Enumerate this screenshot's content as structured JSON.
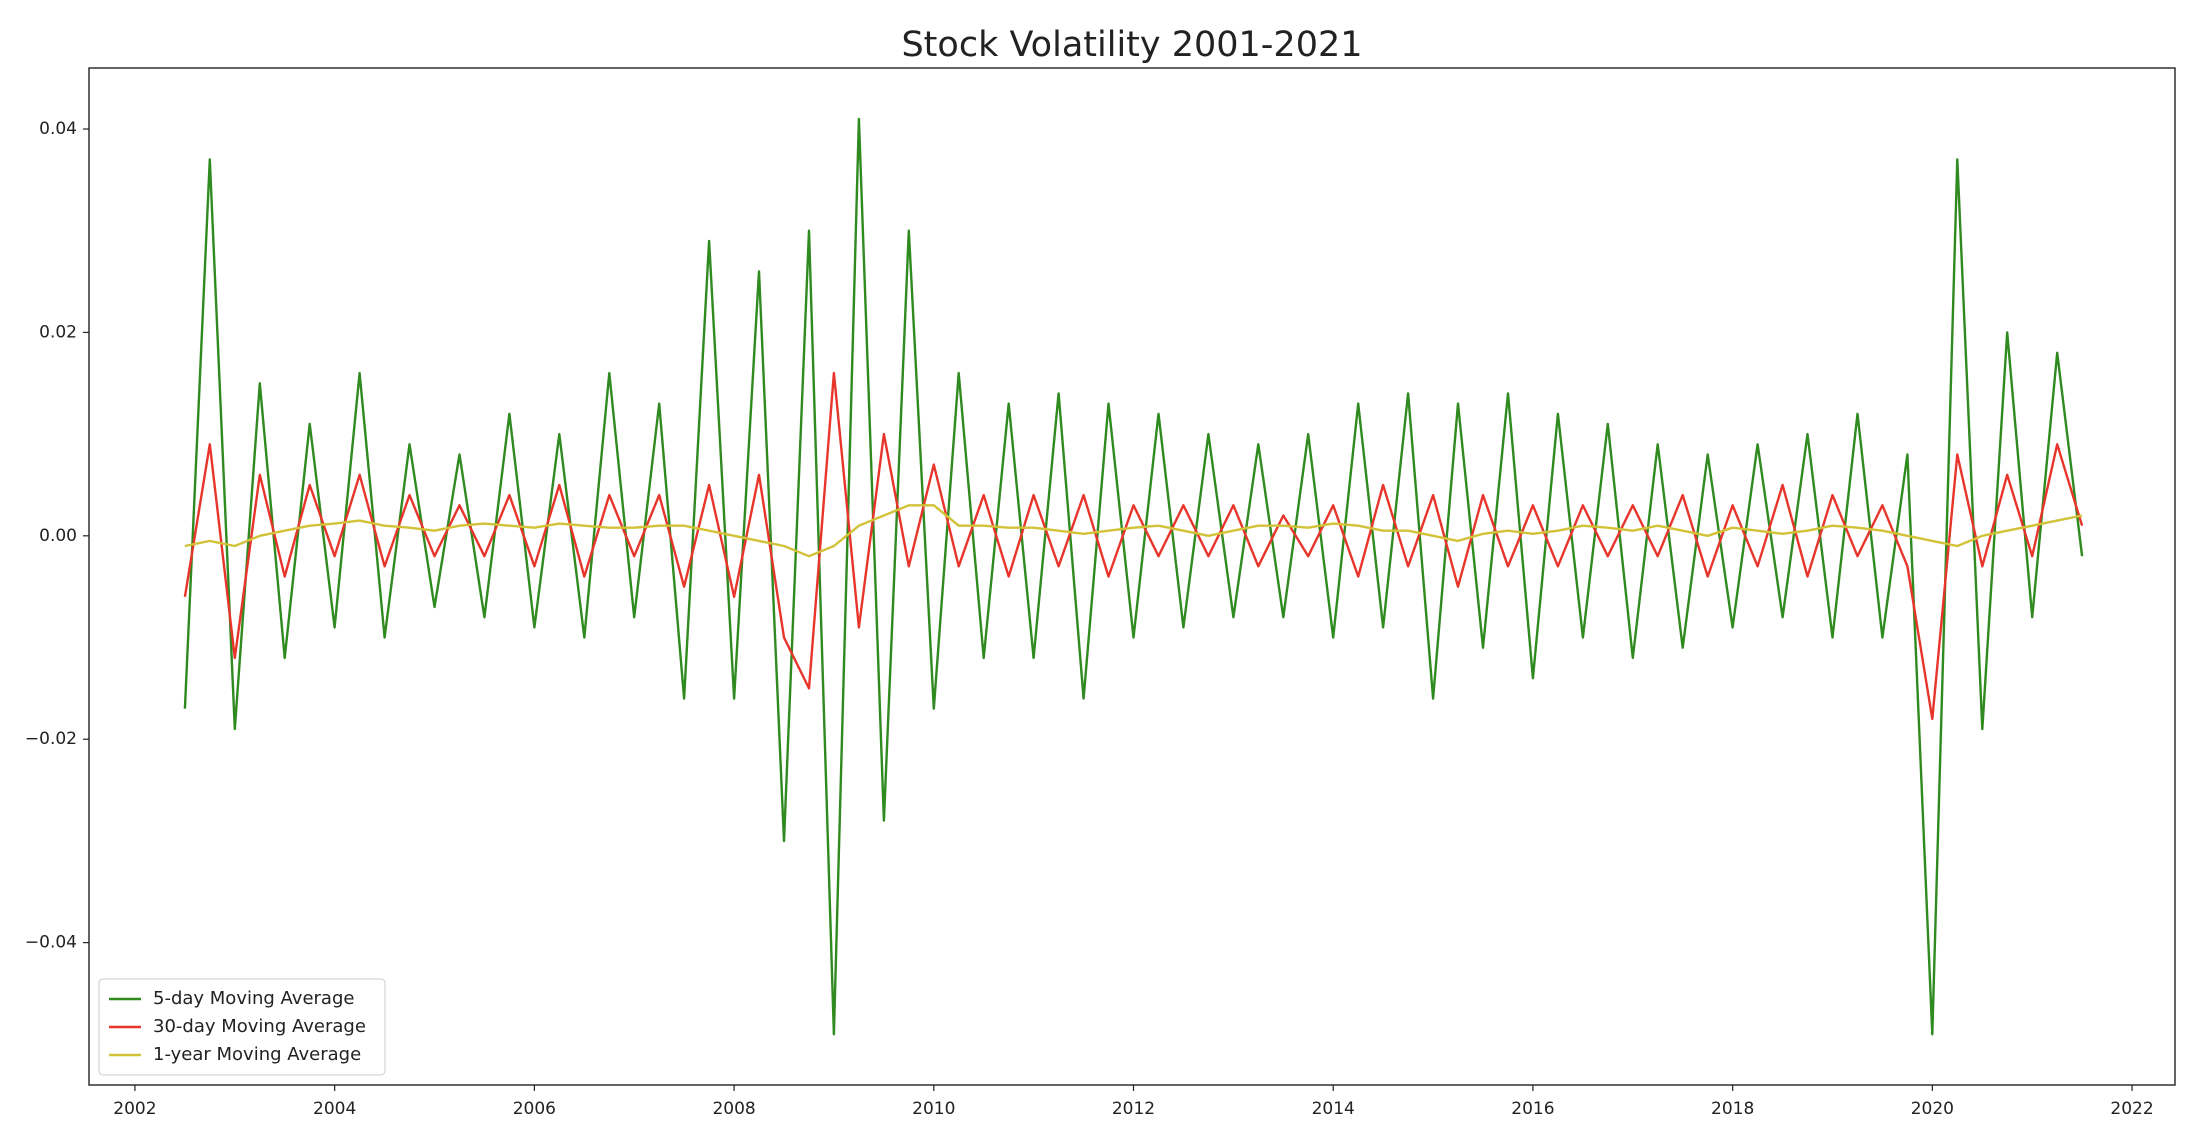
{
  "chart_data": {
    "type": "line",
    "title": "Stock Volatility 2001-2021",
    "x": [
      2002.5,
      2002.75,
      2003,
      2003.25,
      2003.5,
      2003.75,
      2004,
      2004.25,
      2004.5,
      2004.75,
      2005,
      2005.25,
      2005.5,
      2005.75,
      2006,
      2006.25,
      2006.5,
      2006.75,
      2007,
      2007.25,
      2007.5,
      2007.75,
      2008,
      2008.25,
      2008.5,
      2008.75,
      2009,
      2009.25,
      2009.5,
      2009.75,
      2010,
      2010.25,
      2010.5,
      2010.75,
      2011,
      2011.25,
      2011.5,
      2011.75,
      2012,
      2012.25,
      2012.5,
      2012.75,
      2013,
      2013.25,
      2013.5,
      2013.75,
      2014,
      2014.25,
      2014.5,
      2014.75,
      2015,
      2015.25,
      2015.5,
      2015.75,
      2016,
      2016.25,
      2016.5,
      2016.75,
      2017,
      2017.25,
      2017.5,
      2017.75,
      2018,
      2018.25,
      2018.5,
      2018.75,
      2019,
      2019.25,
      2019.5,
      2019.75,
      2020,
      2020.25,
      2020.5,
      2020.75,
      2021,
      2021.25,
      2021.5
    ],
    "series": [
      {
        "name": "5-day Moving Average",
        "color": "#2f8a1f",
        "values": [
          -0.017,
          0.037,
          -0.019,
          0.015,
          -0.012,
          0.011,
          -0.009,
          0.016,
          -0.01,
          0.009,
          -0.007,
          0.008,
          -0.008,
          0.012,
          -0.009,
          0.01,
          -0.01,
          0.016,
          -0.008,
          0.013,
          -0.016,
          0.029,
          -0.016,
          0.026,
          -0.03,
          0.03,
          -0.049,
          0.041,
          -0.028,
          0.03,
          -0.017,
          0.016,
          -0.012,
          0.013,
          -0.012,
          0.014,
          -0.016,
          0.013,
          -0.01,
          0.012,
          -0.009,
          0.01,
          -0.008,
          0.009,
          -0.008,
          0.01,
          -0.01,
          0.013,
          -0.009,
          0.014,
          -0.016,
          0.013,
          -0.011,
          0.014,
          -0.014,
          0.012,
          -0.01,
          0.011,
          -0.012,
          0.009,
          -0.011,
          0.008,
          -0.009,
          0.009,
          -0.008,
          0.01,
          -0.01,
          0.012,
          -0.01,
          0.008,
          -0.049,
          0.037,
          -0.019,
          0.02,
          -0.008,
          0.018,
          -0.002
        ]
      },
      {
        "name": "30-day Moving Average",
        "color": "#e8352b",
        "values": [
          -0.006,
          0.009,
          -0.012,
          0.006,
          -0.004,
          0.005,
          -0.002,
          0.006,
          -0.003,
          0.004,
          -0.002,
          0.003,
          -0.002,
          0.004,
          -0.003,
          0.005,
          -0.004,
          0.004,
          -0.002,
          0.004,
          -0.005,
          0.005,
          -0.006,
          0.006,
          -0.01,
          -0.015,
          0.016,
          -0.009,
          0.01,
          -0.003,
          0.007,
          -0.003,
          0.004,
          -0.004,
          0.004,
          -0.003,
          0.004,
          -0.004,
          0.003,
          -0.002,
          0.003,
          -0.002,
          0.003,
          -0.003,
          0.002,
          -0.002,
          0.003,
          -0.004,
          0.005,
          -0.003,
          0.004,
          -0.005,
          0.004,
          -0.003,
          0.003,
          -0.003,
          0.003,
          -0.002,
          0.003,
          -0.002,
          0.004,
          -0.004,
          0.003,
          -0.003,
          0.005,
          -0.004,
          0.004,
          -0.002,
          0.003,
          -0.003,
          -0.018,
          0.008,
          -0.003,
          0.006,
          -0.002,
          0.009,
          0.001
        ]
      },
      {
        "name": "1-year Moving Average",
        "color": "#d2c238",
        "values": [
          -0.001,
          -0.0005,
          -0.001,
          0,
          0.0005,
          0.001,
          0.0012,
          0.0015,
          0.001,
          0.0008,
          0.0005,
          0.001,
          0.0012,
          0.001,
          0.0008,
          0.0012,
          0.001,
          0.0008,
          0.0008,
          0.001,
          0.001,
          0.0005,
          0,
          -0.0005,
          -0.001,
          -0.002,
          -0.001,
          0.001,
          0.002,
          0.003,
          0.003,
          0.001,
          0.001,
          0.0008,
          0.0008,
          0.0005,
          0.0002,
          0.0005,
          0.0008,
          0.001,
          0.0005,
          0,
          0.0005,
          0.001,
          0.001,
          0.0008,
          0.0012,
          0.001,
          0.0005,
          0.0005,
          0,
          -0.0005,
          0.0002,
          0.0005,
          0.0002,
          0.0005,
          0.001,
          0.0008,
          0.0005,
          0.001,
          0.0005,
          0,
          0.0008,
          0.0005,
          0.0002,
          0.0005,
          0.001,
          0.0008,
          0.0005,
          0,
          -0.0005,
          -0.001,
          0,
          0.0005,
          0.001,
          0.0015,
          0.002
        ]
      }
    ],
    "xlim": [
      2001.54,
      2022.43
    ],
    "xticks": [
      2002,
      2004,
      2006,
      2008,
      2010,
      2012,
      2014,
      2016,
      2018,
      2020,
      2022
    ],
    "ylim": [
      -0.054,
      0.046
    ],
    "yticks": [
      {
        "value": -0.04,
        "label": "−0.04"
      },
      {
        "value": -0.02,
        "label": "−0.02"
      },
      {
        "value": 0,
        "label": "0.00"
      },
      0.02,
      0.04
    ],
    "legend": "lower left"
  }
}
